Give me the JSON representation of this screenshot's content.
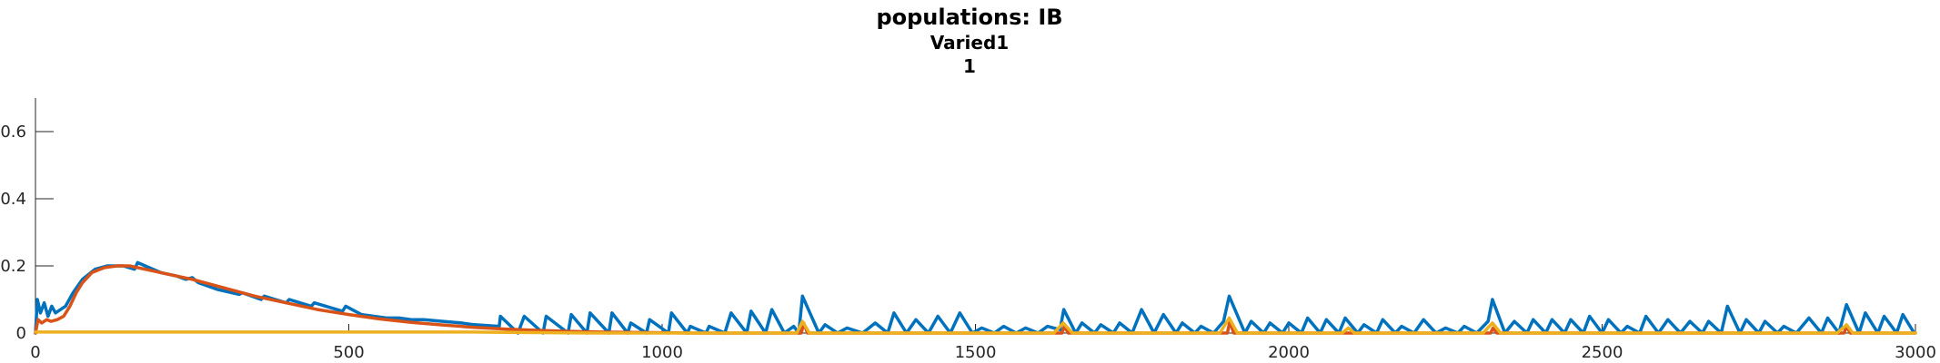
{
  "chart_data": {
    "type": "line",
    "title_lines": [
      "populations: IB",
      "Varied1",
      "1"
    ],
    "xlabel": "",
    "ylabel": "",
    "xlim": [
      0,
      3000
    ],
    "ylim": [
      0,
      0.7
    ],
    "xticks": [
      0,
      500,
      1000,
      1500,
      2000,
      2500,
      3000
    ],
    "xtick_labels": [
      "0",
      "500",
      "1000",
      "1500",
      "2000",
      "2500",
      "3000"
    ],
    "yticks": [
      0,
      0.2,
      0.4,
      0.6
    ],
    "ytick_labels": [
      "0",
      "0.2",
      "0.4",
      "0.6"
    ],
    "grid": false,
    "legend": "none",
    "series": [
      {
        "color": "#0072BD",
        "points": [
          [
            0,
            0.0
          ],
          [
            3,
            0.1
          ],
          [
            8,
            0.06
          ],
          [
            14,
            0.09
          ],
          [
            20,
            0.05
          ],
          [
            26,
            0.08
          ],
          [
            32,
            0.06
          ],
          [
            40,
            0.07
          ],
          [
            48,
            0.08
          ],
          [
            60,
            0.12
          ],
          [
            75,
            0.16
          ],
          [
            95,
            0.19
          ],
          [
            115,
            0.2
          ],
          [
            140,
            0.2
          ],
          [
            158,
            0.19
          ],
          [
            163,
            0.21
          ],
          [
            175,
            0.2
          ],
          [
            200,
            0.18
          ],
          [
            225,
            0.17
          ],
          [
            240,
            0.16
          ],
          [
            250,
            0.165
          ],
          [
            260,
            0.15
          ],
          [
            290,
            0.13
          ],
          [
            325,
            0.115
          ],
          [
            330,
            0.12
          ],
          [
            360,
            0.1
          ],
          [
            365,
            0.11
          ],
          [
            400,
            0.09
          ],
          [
            405,
            0.1
          ],
          [
            440,
            0.08
          ],
          [
            445,
            0.09
          ],
          [
            490,
            0.065
          ],
          [
            495,
            0.08
          ],
          [
            520,
            0.055
          ],
          [
            540,
            0.05
          ],
          [
            560,
            0.045
          ],
          [
            580,
            0.045
          ],
          [
            600,
            0.04
          ],
          [
            620,
            0.04
          ],
          [
            650,
            0.035
          ],
          [
            680,
            0.03
          ],
          [
            700,
            0.025
          ],
          [
            740,
            0.02
          ],
          [
            742,
            0.05
          ],
          [
            770,
            0.0
          ],
          [
            780,
            0.05
          ],
          [
            810,
            0.0
          ],
          [
            815,
            0.05
          ],
          [
            850,
            0.0
          ],
          [
            855,
            0.055
          ],
          [
            880,
            0.0
          ],
          [
            885,
            0.06
          ],
          [
            915,
            0.0
          ],
          [
            920,
            0.06
          ],
          [
            945,
            0.0
          ],
          [
            950,
            0.03
          ],
          [
            975,
            0.0
          ],
          [
            980,
            0.04
          ],
          [
            1010,
            0.0
          ],
          [
            1015,
            0.06
          ],
          [
            1040,
            0.0
          ],
          [
            1045,
            0.02
          ],
          [
            1070,
            0.0
          ],
          [
            1075,
            0.02
          ],
          [
            1100,
            0.0
          ],
          [
            1110,
            0.06
          ],
          [
            1135,
            0.0
          ],
          [
            1142,
            0.065
          ],
          [
            1165,
            0.0
          ],
          [
            1175,
            0.07
          ],
          [
            1195,
            0.0
          ],
          [
            1210,
            0.02
          ],
          [
            1218,
            0.0
          ],
          [
            1224,
            0.11
          ],
          [
            1250,
            0.0
          ],
          [
            1260,
            0.025
          ],
          [
            1280,
            0.0
          ],
          [
            1295,
            0.015
          ],
          [
            1320,
            0.0
          ],
          [
            1340,
            0.03
          ],
          [
            1360,
            0.0
          ],
          [
            1370,
            0.06
          ],
          [
            1390,
            0.0
          ],
          [
            1405,
            0.04
          ],
          [
            1425,
            0.0
          ],
          [
            1440,
            0.05
          ],
          [
            1460,
            0.0
          ],
          [
            1475,
            0.06
          ],
          [
            1495,
            0.0
          ],
          [
            1510,
            0.015
          ],
          [
            1530,
            0.0
          ],
          [
            1545,
            0.02
          ],
          [
            1565,
            0.0
          ],
          [
            1580,
            0.015
          ],
          [
            1600,
            0.0
          ],
          [
            1615,
            0.02
          ],
          [
            1635,
            0.01
          ],
          [
            1641,
            0.07
          ],
          [
            1660,
            0.0
          ],
          [
            1670,
            0.03
          ],
          [
            1690,
            0.0
          ],
          [
            1700,
            0.025
          ],
          [
            1720,
            0.0
          ],
          [
            1730,
            0.03
          ],
          [
            1750,
            0.0
          ],
          [
            1765,
            0.07
          ],
          [
            1785,
            0.0
          ],
          [
            1800,
            0.055
          ],
          [
            1820,
            0.0
          ],
          [
            1830,
            0.03
          ],
          [
            1850,
            0.0
          ],
          [
            1860,
            0.02
          ],
          [
            1880,
            0.0
          ],
          [
            1896,
            0.035
          ],
          [
            1905,
            0.11
          ],
          [
            1930,
            0.0
          ],
          [
            1940,
            0.035
          ],
          [
            1960,
            0.0
          ],
          [
            1970,
            0.03
          ],
          [
            1990,
            0.0
          ],
          [
            2000,
            0.03
          ],
          [
            2020,
            0.0
          ],
          [
            2030,
            0.045
          ],
          [
            2050,
            0.0
          ],
          [
            2060,
            0.04
          ],
          [
            2080,
            0.0
          ],
          [
            2090,
            0.045
          ],
          [
            2110,
            0.0
          ],
          [
            2120,
            0.025
          ],
          [
            2140,
            0.0
          ],
          [
            2150,
            0.04
          ],
          [
            2170,
            0.0
          ],
          [
            2180,
            0.02
          ],
          [
            2200,
            0.0
          ],
          [
            2215,
            0.04
          ],
          [
            2235,
            0.0
          ],
          [
            2250,
            0.015
          ],
          [
            2270,
            0.0
          ],
          [
            2280,
            0.02
          ],
          [
            2300,
            0.0
          ],
          [
            2318,
            0.035
          ],
          [
            2325,
            0.1
          ],
          [
            2345,
            0.0
          ],
          [
            2360,
            0.035
          ],
          [
            2380,
            0.0
          ],
          [
            2390,
            0.04
          ],
          [
            2410,
            0.0
          ],
          [
            2420,
            0.04
          ],
          [
            2440,
            0.0
          ],
          [
            2450,
            0.04
          ],
          [
            2470,
            0.0
          ],
          [
            2480,
            0.05
          ],
          [
            2500,
            0.0
          ],
          [
            2510,
            0.04
          ],
          [
            2530,
            0.0
          ],
          [
            2540,
            0.02
          ],
          [
            2560,
            0.0
          ],
          [
            2570,
            0.05
          ],
          [
            2590,
            0.0
          ],
          [
            2605,
            0.04
          ],
          [
            2625,
            0.0
          ],
          [
            2640,
            0.035
          ],
          [
            2660,
            0.0
          ],
          [
            2670,
            0.035
          ],
          [
            2690,
            0.0
          ],
          [
            2700,
            0.08
          ],
          [
            2720,
            0.0
          ],
          [
            2730,
            0.04
          ],
          [
            2750,
            0.0
          ],
          [
            2760,
            0.035
          ],
          [
            2780,
            0.0
          ],
          [
            2790,
            0.02
          ],
          [
            2810,
            0.0
          ],
          [
            2830,
            0.045
          ],
          [
            2850,
            0.0
          ],
          [
            2860,
            0.045
          ],
          [
            2878,
            0.0
          ],
          [
            2890,
            0.085
          ],
          [
            2910,
            0.0
          ],
          [
            2920,
            0.06
          ],
          [
            2940,
            0.0
          ],
          [
            2950,
            0.05
          ],
          [
            2970,
            0.0
          ],
          [
            2980,
            0.055
          ],
          [
            2998,
            0.0
          ]
        ]
      },
      {
        "color": "#D95319",
        "points": [
          [
            0,
            0.0
          ],
          [
            4,
            0.04
          ],
          [
            10,
            0.03
          ],
          [
            18,
            0.04
          ],
          [
            25,
            0.035
          ],
          [
            35,
            0.04
          ],
          [
            45,
            0.05
          ],
          [
            55,
            0.08
          ],
          [
            65,
            0.12
          ],
          [
            75,
            0.15
          ],
          [
            90,
            0.18
          ],
          [
            110,
            0.195
          ],
          [
            130,
            0.2
          ],
          [
            150,
            0.2
          ],
          [
            175,
            0.19
          ],
          [
            200,
            0.18
          ],
          [
            250,
            0.16
          ],
          [
            300,
            0.135
          ],
          [
            350,
            0.11
          ],
          [
            400,
            0.09
          ],
          [
            450,
            0.07
          ],
          [
            500,
            0.055
          ],
          [
            550,
            0.042
          ],
          [
            600,
            0.032
          ],
          [
            650,
            0.024
          ],
          [
            700,
            0.017
          ],
          [
            750,
            0.012
          ],
          [
            800,
            0.008
          ],
          [
            850,
            0.005
          ],
          [
            900,
            0.003
          ],
          [
            950,
            0.002
          ],
          [
            1000,
            0.001
          ],
          [
            1050,
            0.0
          ],
          [
            1222,
            0.0
          ],
          [
            1226,
            0.03
          ],
          [
            1232,
            0.0
          ],
          [
            1638,
            0.0
          ],
          [
            1642,
            0.02
          ],
          [
            1648,
            0.0
          ],
          [
            1902,
            0.0
          ],
          [
            1906,
            0.035
          ],
          [
            1912,
            0.0
          ],
          [
            2322,
            0.0
          ],
          [
            2326,
            0.015
          ],
          [
            2332,
            0.0
          ],
          [
            2886,
            0.0
          ],
          [
            2890,
            0.02
          ],
          [
            2896,
            0.0
          ],
          [
            3000,
            0.0
          ]
        ]
      },
      {
        "color": "#EDB120",
        "points": [
          [
            0,
            0.003
          ],
          [
            700,
            0.003
          ],
          [
            750,
            0.002
          ],
          [
            900,
            0.0
          ],
          [
            1215,
            0.0
          ],
          [
            1224,
            0.035
          ],
          [
            1235,
            0.0
          ],
          [
            1625,
            0.0
          ],
          [
            1640,
            0.03
          ],
          [
            1655,
            0.0
          ],
          [
            1890,
            0.0
          ],
          [
            1905,
            0.045
          ],
          [
            1918,
            0.0
          ],
          [
            2085,
            0.0
          ],
          [
            2095,
            0.015
          ],
          [
            2105,
            0.0
          ],
          [
            2310,
            0.0
          ],
          [
            2325,
            0.03
          ],
          [
            2338,
            0.0
          ],
          [
            2875,
            0.0
          ],
          [
            2890,
            0.025
          ],
          [
            2900,
            0.0
          ],
          [
            3000,
            0.0
          ]
        ]
      }
    ]
  }
}
